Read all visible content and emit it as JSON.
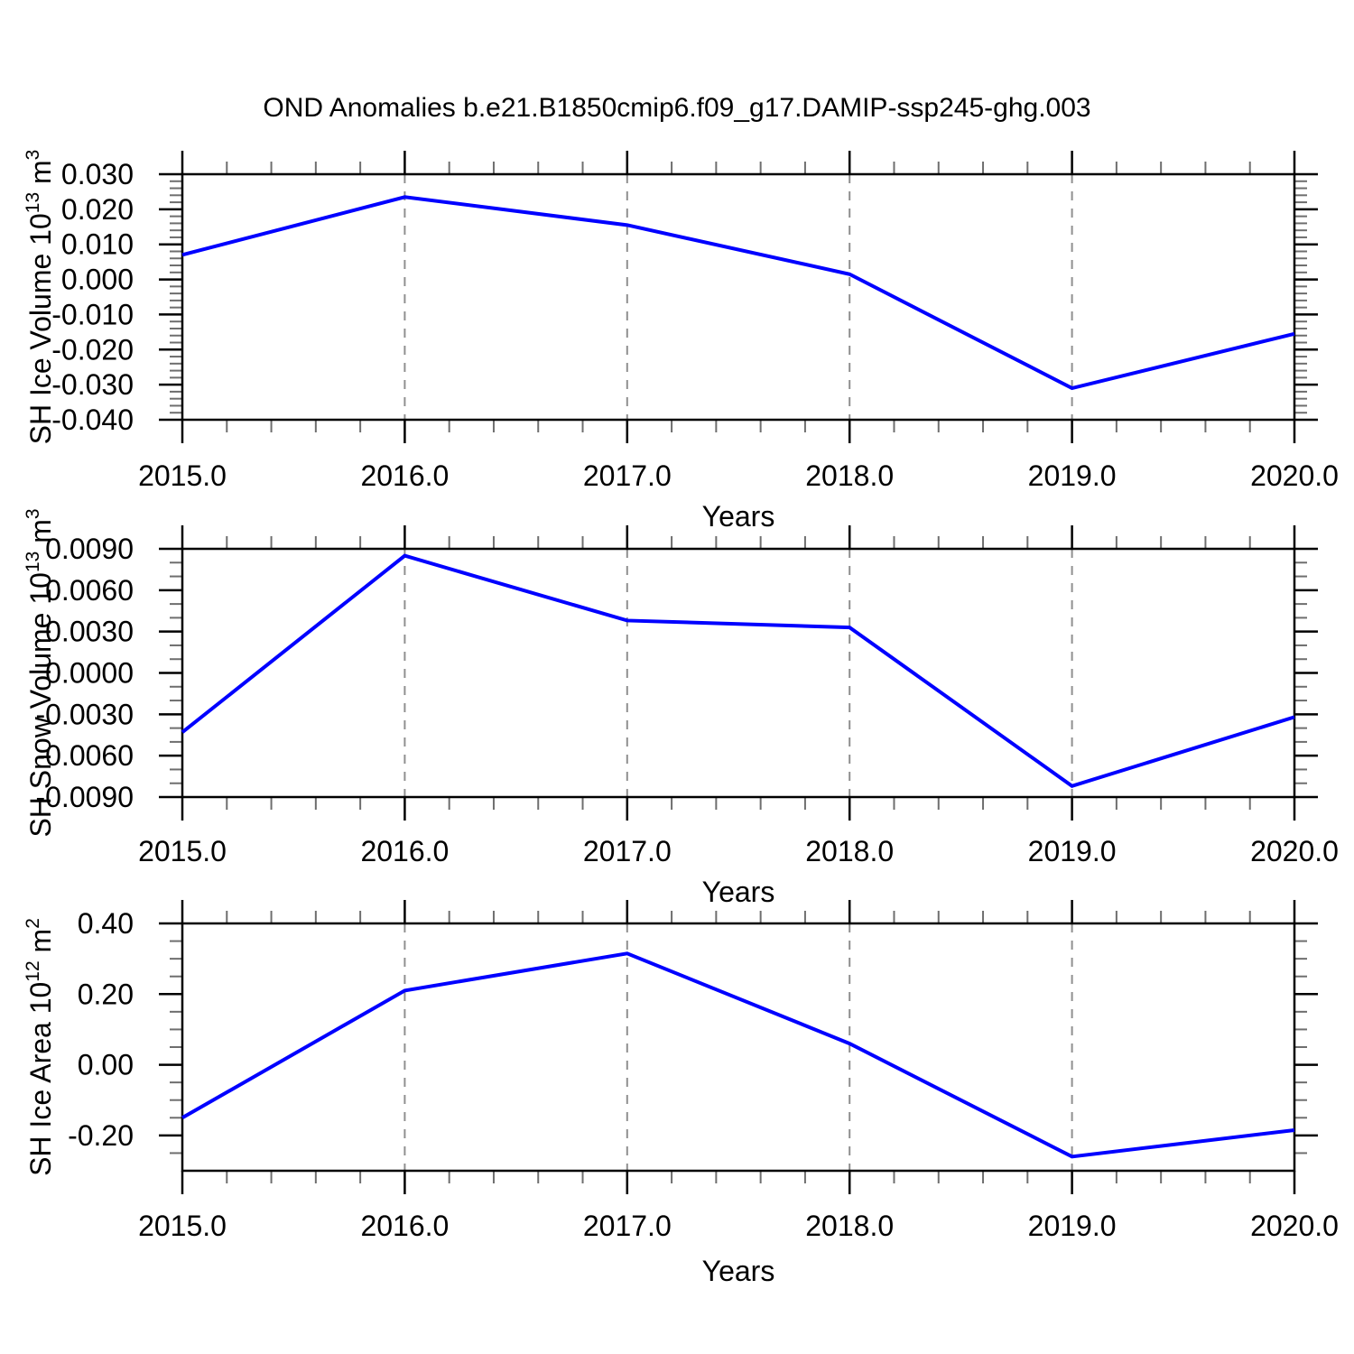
{
  "title": "OND Anomalies b.e21.B1850cmip6.f09_g17.DAMIP-ssp245-ghg.003",
  "colors": {
    "line": "#0000ff",
    "frame": "#000000",
    "major_tick": "#000000",
    "minor_tick": "#6e6e6e",
    "grid": "#8f8f8f",
    "text": "#000000",
    "background": "#ffffff"
  },
  "chart_data": [
    {
      "type": "line",
      "name": "sh-ice-volume",
      "ylabel_parts": [
        "SH Ice Volume 10",
        {
          "sup": "13"
        },
        " m",
        {
          "sup": "3"
        }
      ],
      "xlabel": "Years",
      "x": [
        2015,
        2016,
        2017,
        2018,
        2019,
        2020
      ],
      "values": [
        0.007,
        0.0235,
        0.0155,
        0.0015,
        -0.031,
        -0.0155
      ],
      "xlim": [
        2015,
        2020
      ],
      "ylim": [
        -0.04,
        0.03
      ],
      "ytick_values": [
        0.03,
        0.02,
        0.01,
        0.0,
        -0.01,
        -0.02,
        -0.03,
        -0.04
      ],
      "ytick_labels": [
        "0.030",
        "0.020",
        "0.010",
        "0.000",
        "-0.010",
        "-0.020",
        "-0.030",
        "-0.040"
      ],
      "yminor_step": 0.002,
      "xtick_labels": [
        "2015.0",
        "2016.0",
        "2017.0",
        "2018.0",
        "2019.0",
        "2020.0"
      ],
      "xminor_step": 0.2,
      "grid_x": [
        2016,
        2017,
        2018,
        2019
      ],
      "legend": "none",
      "grid": "vertical-dashed"
    },
    {
      "type": "line",
      "name": "sh-snow-volume",
      "ylabel_parts": [
        "SH Snow Volume 10",
        {
          "sup": "13"
        },
        " m",
        {
          "sup": "3"
        }
      ],
      "xlabel": "Years",
      "x": [
        2015,
        2016,
        2017,
        2018,
        2019,
        2020
      ],
      "values": [
        -0.0043,
        0.0085,
        0.0038,
        0.0033,
        -0.0082,
        -0.0032
      ],
      "xlim": [
        2015,
        2020
      ],
      "ylim": [
        -0.009,
        0.009
      ],
      "ytick_values": [
        0.009,
        0.006,
        0.003,
        0.0,
        -0.003,
        -0.006,
        -0.009
      ],
      "ytick_labels": [
        "0.0090",
        "0.0060",
        "0.0030",
        "0.0000",
        "-0.0030",
        "-0.0060",
        "-0.0090"
      ],
      "yminor_step": 0.001,
      "xtick_labels": [
        "2015.0",
        "2016.0",
        "2017.0",
        "2018.0",
        "2019.0",
        "2020.0"
      ],
      "xminor_step": 0.2,
      "grid_x": [
        2016,
        2017,
        2018,
        2019
      ],
      "legend": "none",
      "grid": "vertical-dashed"
    },
    {
      "type": "line",
      "name": "sh-ice-area",
      "ylabel_parts": [
        "SH Ice Area 10",
        {
          "sup": "12"
        },
        " m",
        {
          "sup": "2"
        }
      ],
      "xlabel": "Years",
      "x": [
        2015,
        2016,
        2017,
        2018,
        2019,
        2020
      ],
      "values": [
        -0.15,
        0.21,
        0.315,
        0.06,
        -0.26,
        -0.185
      ],
      "xlim": [
        2015,
        2020
      ],
      "ylim": [
        -0.3,
        0.4
      ],
      "ytick_values": [
        0.4,
        0.2,
        0.0,
        -0.2
      ],
      "ytick_labels": [
        "0.40",
        "0.20",
        "0.00",
        "-0.20"
      ],
      "yminor_step": 0.05,
      "xtick_labels": [
        "2015.0",
        "2016.0",
        "2017.0",
        "2018.0",
        "2019.0",
        "2020.0"
      ],
      "xminor_step": 0.2,
      "grid_x": [
        2016,
        2017,
        2018,
        2019
      ],
      "legend": "none",
      "grid": "vertical-dashed"
    }
  ]
}
